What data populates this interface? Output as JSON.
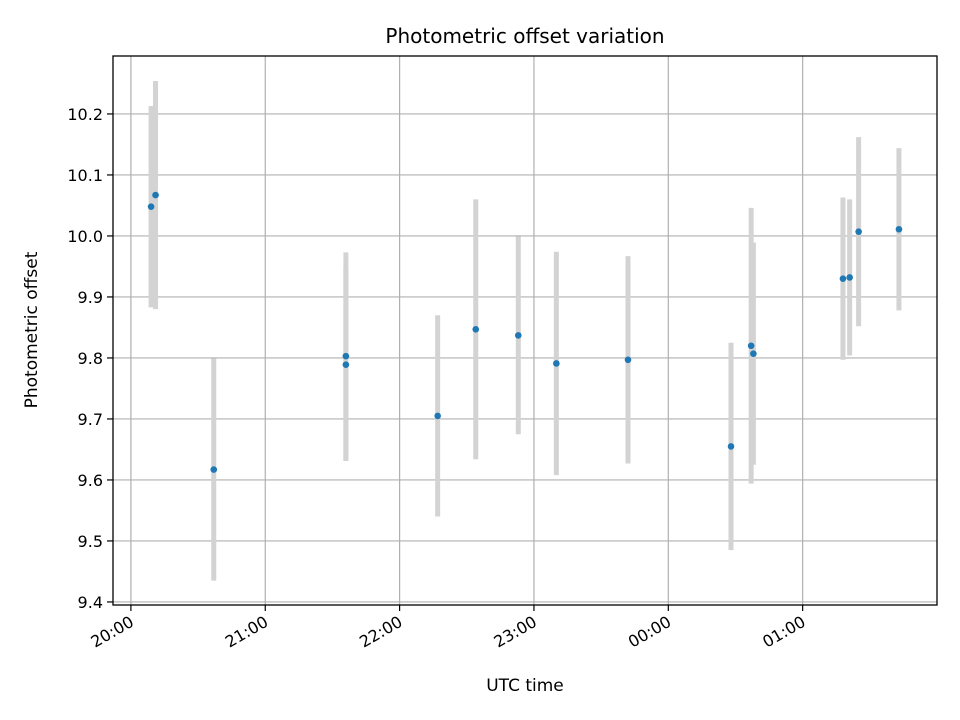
{
  "chart_data": {
    "type": "scatter",
    "title": "Photometric offset variation",
    "xlabel": "UTC time",
    "ylabel": "Photometric offset",
    "x_ticks": [
      "20:00",
      "21:00",
      "22:00",
      "23:00",
      "00:00",
      "01:00"
    ],
    "y_ticks": [
      "9.4",
      "9.5",
      "9.6",
      "9.7",
      "9.8",
      "9.9",
      "10.0",
      "10.1",
      "10.2"
    ],
    "xlim": [
      "19:52",
      "02:00"
    ],
    "ylim": [
      9.395,
      10.295
    ],
    "grid": true,
    "marker_color": "#1f77b4",
    "errorbar_color": "#d3d3d3",
    "points": [
      {
        "x": "20:09",
        "y": 10.048,
        "err": 0.165
      },
      {
        "x": "20:11",
        "y": 10.067,
        "err": 0.187
      },
      {
        "x": "20:37",
        "y": 9.617,
        "err": 0.182
      },
      {
        "x": "21:36",
        "y": 9.803,
        "err": 0.17
      },
      {
        "x": "21:36",
        "y": 9.789,
        "err": 0.158
      },
      {
        "x": "22:17",
        "y": 9.705,
        "err": 0.165
      },
      {
        "x": "22:34",
        "y": 9.847,
        "err": 0.213
      },
      {
        "x": "22:53",
        "y": 9.837,
        "err": 0.162
      },
      {
        "x": "23:10",
        "y": 9.791,
        "err": 0.183
      },
      {
        "x": "23:42",
        "y": 9.797,
        "err": 0.17
      },
      {
        "x": "00:28",
        "y": 9.655,
        "err": 0.17
      },
      {
        "x": "00:37",
        "y": 9.82,
        "err": 0.226
      },
      {
        "x": "00:38",
        "y": 9.807,
        "err": 0.182
      },
      {
        "x": "01:18",
        "y": 9.93,
        "err": 0.133
      },
      {
        "x": "01:21",
        "y": 9.932,
        "err": 0.128
      },
      {
        "x": "01:25",
        "y": 10.007,
        "err": 0.155
      },
      {
        "x": "01:43",
        "y": 10.011,
        "err": 0.133
      }
    ]
  }
}
